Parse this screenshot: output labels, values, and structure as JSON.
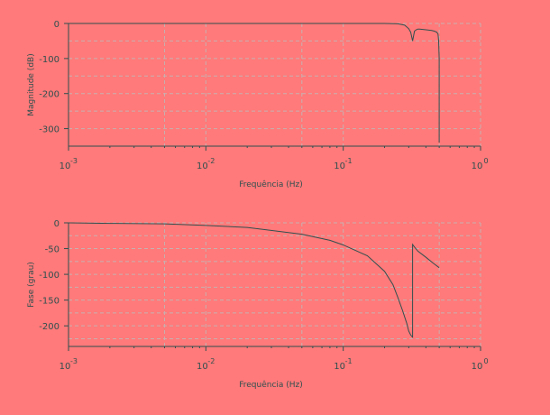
{
  "colors": {
    "background": "#ff7a7a",
    "axis": "#2f4f4f",
    "grid": "#c8b0b0",
    "line": "#2f4f4f"
  },
  "chart_data": [
    {
      "type": "line",
      "xscale": "log",
      "xlim": [
        0.001,
        1
      ],
      "ylim": [
        -350,
        0
      ],
      "xticks": [
        0.001,
        0.01,
        0.1,
        1
      ],
      "xtick_labels": [
        [
          "10",
          "-3"
        ],
        [
          "10",
          "-2"
        ],
        [
          "10",
          "-1"
        ],
        [
          "10",
          "0"
        ]
      ],
      "yticks": [
        0,
        -100,
        -200,
        -300
      ],
      "ytick_labels": [
        "0",
        "-100",
        "-200",
        "-300"
      ],
      "xlabel": "Frequência (Hz)",
      "ylabel": "Magnitude (dB)",
      "grid": true,
      "series": [
        {
          "x": [
            0.001,
            0.01,
            0.05,
            0.1,
            0.2,
            0.25,
            0.28,
            0.3,
            0.31,
            0.32,
            0.33,
            0.34,
            0.35,
            0.36,
            0.38,
            0.4,
            0.42,
            0.44,
            0.46,
            0.48,
            0.49,
            0.495,
            0.5,
            0.5
          ],
          "y": [
            0,
            0,
            0,
            0,
            0,
            -1,
            -5,
            -15,
            -25,
            -50,
            -22,
            -18,
            -16,
            -16,
            -17,
            -18,
            -19,
            -20,
            -22,
            -25,
            -30,
            -50,
            -100,
            -340
          ]
        }
      ]
    },
    {
      "type": "line",
      "xscale": "log",
      "xlim": [
        0.001,
        1
      ],
      "ylim": [
        -240,
        0
      ],
      "xticks": [
        0.001,
        0.01,
        0.1,
        1
      ],
      "xtick_labels": [
        [
          "10",
          "-3"
        ],
        [
          "10",
          "-2"
        ],
        [
          "10",
          "-1"
        ],
        [
          "10",
          "0"
        ]
      ],
      "yticks": [
        0,
        -50,
        -100,
        -150,
        -200
      ],
      "ytick_labels": [
        "0",
        "-50",
        "-100",
        "-150",
        "-200"
      ],
      "xlabel": "Frequência (Hz)",
      "ylabel": "Fase (grau)",
      "grid": true,
      "series": [
        {
          "x": [
            0.001,
            0.002,
            0.005,
            0.01,
            0.02,
            0.05,
            0.08,
            0.1,
            0.15,
            0.2,
            0.23,
            0.25,
            0.27,
            0.29,
            0.3,
            0.31,
            0.32,
            0.32,
            0.33,
            0.35,
            0.4,
            0.45,
            0.5
          ],
          "y": [
            0,
            -1,
            -2,
            -5,
            -9,
            -22,
            -34,
            -43,
            -64,
            -94,
            -120,
            -145,
            -170,
            -195,
            -210,
            -218,
            -222,
            -42,
            -47,
            -55,
            -67,
            -78,
            -87
          ]
        }
      ]
    }
  ]
}
